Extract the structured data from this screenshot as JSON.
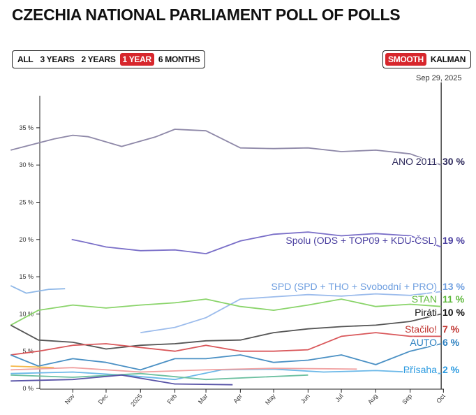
{
  "title": "CZECHIA NATIONAL PARLIAMENT POLL OF POLLS",
  "range_buttons": [
    "ALL",
    "3 YEARS",
    "2 YEARS",
    "1 YEAR",
    "6 MONTHS"
  ],
  "range_selected": "1 YEAR",
  "method_buttons": [
    "SMOOTH",
    "KALMAN"
  ],
  "method_selected": "SMOOTH",
  "accent_color": "#d7262c",
  "current_date": "Sep 29, 2025",
  "chart_data": {
    "type": "line",
    "ylim": [
      0,
      37
    ],
    "y_ticks": [
      "0 %",
      "5 %",
      "10 %",
      "15 %",
      "20 %",
      "25 %",
      "30 %",
      "35 %"
    ],
    "x_ticks": [
      "Nov",
      "Dec",
      "2025",
      "Feb",
      "Mar",
      "Apr",
      "May",
      "Jun",
      "Jul",
      "Aug",
      "Sep",
      "Oct"
    ],
    "xlim": [
      "2024-09-06",
      "2025-10-01"
    ],
    "grid": false,
    "series": [
      {
        "name": "ANO 2011",
        "label": "30 %",
        "color": "#8e88a8",
        "label_color": "#2e2a5c",
        "points": [
          [
            "2024-09-06",
            32
          ],
          [
            "2024-10-15",
            33.5
          ],
          [
            "2024-11-01",
            34
          ],
          [
            "2024-11-15",
            33.8
          ],
          [
            "2024-12-15",
            32.5
          ],
          [
            "2025-01-15",
            33.8
          ],
          [
            "2025-02-01",
            34.8
          ],
          [
            "2025-03-01",
            34.6
          ],
          [
            "2025-04-01",
            32.3
          ],
          [
            "2025-05-01",
            32.2
          ],
          [
            "2025-06-01",
            32.3
          ],
          [
            "2025-07-01",
            31.8
          ],
          [
            "2025-08-01",
            32
          ],
          [
            "2025-09-01",
            31.5
          ],
          [
            "2025-09-29",
            30
          ]
        ]
      },
      {
        "name": "Spolu (ODS + TOP09 + KDU-ČSL)",
        "label": "19 %",
        "color": "#7a6fc8",
        "label_color": "#4a3fa0",
        "points": [
          [
            "2024-10-31",
            20
          ],
          [
            "2024-11-10",
            19.7
          ],
          [
            "2024-12-01",
            19
          ],
          [
            "2025-01-01",
            18.5
          ],
          [
            "2025-02-01",
            18.6
          ],
          [
            "2025-03-01",
            18.1
          ],
          [
            "2025-04-01",
            19.8
          ],
          [
            "2025-05-01",
            20.7
          ],
          [
            "2025-06-01",
            21
          ],
          [
            "2025-07-01",
            20.5
          ],
          [
            "2025-08-01",
            20.8
          ],
          [
            "2025-09-01",
            20.5
          ],
          [
            "2025-09-29",
            19
          ]
        ]
      },
      {
        "name": "SPD (SPD + THO + Svobodní + PRO)",
        "label": "13 %",
        "color": "#9cbcec",
        "label_color": "#6f9fe0",
        "points": [
          [
            "2025-01-01",
            7.5
          ],
          [
            "2025-02-01",
            8.2
          ],
          [
            "2025-03-01",
            9.5
          ],
          [
            "2025-04-01",
            12
          ],
          [
            "2025-05-01",
            12.3
          ],
          [
            "2025-06-01",
            12.6
          ],
          [
            "2025-07-01",
            12.4
          ],
          [
            "2025-08-01",
            12.7
          ],
          [
            "2025-09-01",
            12.5
          ],
          [
            "2025-09-29",
            13
          ]
        ]
      },
      {
        "name": "STAN",
        "label": "11 %",
        "color": "#8ad46a",
        "label_color": "#5cb83a",
        "points": [
          [
            "2024-09-06",
            8.5
          ],
          [
            "2024-10-01",
            10.5
          ],
          [
            "2024-11-01",
            11.2
          ],
          [
            "2024-12-01",
            10.8
          ],
          [
            "2025-01-01",
            11.2
          ],
          [
            "2025-02-01",
            11.5
          ],
          [
            "2025-03-01",
            12
          ],
          [
            "2025-04-01",
            11
          ],
          [
            "2025-05-01",
            10.5
          ],
          [
            "2025-06-01",
            11.2
          ],
          [
            "2025-07-01",
            12
          ],
          [
            "2025-08-01",
            11
          ],
          [
            "2025-09-01",
            11.3
          ],
          [
            "2025-09-29",
            11
          ]
        ]
      },
      {
        "name": "Piráti",
        "label": "10 %",
        "color": "#555555",
        "label_color": "#111111",
        "points": [
          [
            "2024-09-06",
            8.5
          ],
          [
            "2024-10-01",
            6.5
          ],
          [
            "2024-11-01",
            6.2
          ],
          [
            "2024-12-01",
            5.3
          ],
          [
            "2025-01-01",
            5.8
          ],
          [
            "2025-02-01",
            6
          ],
          [
            "2025-03-01",
            6.4
          ],
          [
            "2025-04-01",
            6.5
          ],
          [
            "2025-05-01",
            7.5
          ],
          [
            "2025-06-01",
            8
          ],
          [
            "2025-07-01",
            8.3
          ],
          [
            "2025-08-01",
            8.5
          ],
          [
            "2025-09-01",
            9
          ],
          [
            "2025-09-29",
            10
          ]
        ]
      },
      {
        "name": "Stačilo!",
        "label": "7 %",
        "color": "#d9575a",
        "label_color": "#c0332f",
        "points": [
          [
            "2024-09-06",
            4.5
          ],
          [
            "2024-10-01",
            5
          ],
          [
            "2024-11-01",
            5.8
          ],
          [
            "2024-12-01",
            6
          ],
          [
            "2025-01-01",
            5.5
          ],
          [
            "2025-02-01",
            5
          ],
          [
            "2025-03-01",
            5.8
          ],
          [
            "2025-04-01",
            5
          ],
          [
            "2025-05-01",
            5
          ],
          [
            "2025-06-01",
            5.2
          ],
          [
            "2025-07-01",
            7
          ],
          [
            "2025-08-01",
            7.5
          ],
          [
            "2025-09-01",
            7
          ],
          [
            "2025-09-29",
            7
          ]
        ]
      },
      {
        "name": "AUTO",
        "label": "6 %",
        "color": "#4a90c4",
        "label_color": "#2a7fc0",
        "points": [
          [
            "2024-09-06",
            4.5
          ],
          [
            "2024-10-01",
            3
          ],
          [
            "2024-11-01",
            4
          ],
          [
            "2024-12-01",
            3.5
          ],
          [
            "2025-01-01",
            2.5
          ],
          [
            "2025-02-01",
            4
          ],
          [
            "2025-03-01",
            4
          ],
          [
            "2025-04-01",
            4.5
          ],
          [
            "2025-05-01",
            3.5
          ],
          [
            "2025-06-01",
            3.8
          ],
          [
            "2025-07-01",
            4.5
          ],
          [
            "2025-08-01",
            3.2
          ],
          [
            "2025-09-01",
            5
          ],
          [
            "2025-09-29",
            6
          ]
        ]
      },
      {
        "name": "Přísaha",
        "label": "2 %",
        "color": "#6bb8e8",
        "label_color": "#2a9ae0",
        "points": [
          [
            "2024-09-06",
            2
          ],
          [
            "2024-11-01",
            2.2
          ],
          [
            "2024-12-15",
            1.8
          ],
          [
            "2025-02-01",
            1.2
          ],
          [
            "2025-03-15",
            2.5
          ],
          [
            "2025-05-01",
            2.6
          ],
          [
            "2025-06-15",
            2.2
          ],
          [
            "2025-08-01",
            2.4
          ],
          [
            "2025-09-29",
            2
          ]
        ]
      },
      {
        "color": "#8fb8e8",
        "points": [
          [
            "2024-09-06",
            13.8
          ],
          [
            "2024-09-20",
            12.8
          ],
          [
            "2024-10-10",
            13.3
          ],
          [
            "2024-10-25",
            13.4
          ]
        ]
      },
      {
        "color": "#f5b84a",
        "points": [
          [
            "2024-09-06",
            3
          ],
          [
            "2024-10-15",
            2.8
          ]
        ]
      },
      {
        "color": "#f0a0a0",
        "points": [
          [
            "2024-09-06",
            2.5
          ],
          [
            "2024-11-01",
            2.8
          ],
          [
            "2025-01-01",
            2.2
          ],
          [
            "2025-03-01",
            2.5
          ],
          [
            "2025-05-01",
            2.7
          ],
          [
            "2025-07-15",
            2.6
          ]
        ]
      },
      {
        "color": "#6cc0a0",
        "points": [
          [
            "2024-09-06",
            1.8
          ],
          [
            "2024-11-01",
            1.5
          ],
          [
            "2025-01-01",
            2
          ],
          [
            "2025-03-01",
            1.2
          ],
          [
            "2025-06-01",
            1.8
          ]
        ]
      },
      {
        "color": "#5a55a8",
        "points": [
          [
            "2024-09-06",
            1
          ],
          [
            "2024-11-01",
            1.2
          ],
          [
            "2024-12-15",
            1.8
          ],
          [
            "2025-02-01",
            0.6
          ],
          [
            "2025-03-25",
            0.5
          ]
        ]
      }
    ]
  }
}
